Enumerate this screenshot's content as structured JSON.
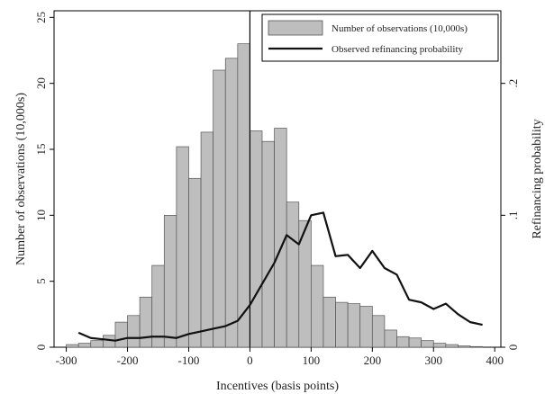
{
  "chart_data": {
    "type": "bar",
    "xlabel": "Incentives (basis points)",
    "ylabel_left": "Number of observations (10,000s)",
    "ylabel_right": "Refinancing probability",
    "xlim": [
      -320,
      410
    ],
    "ylim_left": [
      0,
      25.5
    ],
    "ylim_right": [
      0,
      0.255
    ],
    "xticks": [
      -300,
      -200,
      -100,
      0,
      100,
      200,
      300,
      400
    ],
    "yticks_left": [
      0,
      5,
      10,
      15,
      20,
      25
    ],
    "yticks_right": [
      0,
      0.1,
      0.2
    ],
    "ytick_labels_right": [
      "0",
      ".1",
      ".2"
    ],
    "vline_x": 0,
    "grid": false,
    "legend_position": "top-right",
    "bar_width": 20,
    "series": [
      {
        "name": "Number of observations (10,000s)",
        "kind": "bar",
        "axis": "left",
        "color": "#bebebe",
        "x": [
          -290,
          -270,
          -250,
          -230,
          -210,
          -190,
          -170,
          -150,
          -130,
          -110,
          -90,
          -70,
          -50,
          -30,
          -10,
          10,
          30,
          50,
          70,
          90,
          110,
          130,
          150,
          170,
          190,
          210,
          230,
          250,
          270,
          290,
          310,
          330,
          350,
          370
        ],
        "values": [
          0.2,
          0.3,
          0.5,
          0.9,
          1.9,
          2.4,
          3.8,
          6.2,
          10.0,
          15.2,
          12.8,
          16.3,
          21.0,
          21.9,
          23.0,
          16.4,
          15.6,
          16.6,
          11.0,
          9.6,
          6.2,
          3.8,
          3.4,
          3.3,
          3.1,
          2.4,
          1.3,
          0.8,
          0.7,
          0.5,
          0.3,
          0.2,
          0.1,
          0.05
        ]
      },
      {
        "name": "Observed refinancing probability",
        "kind": "line",
        "axis": "right",
        "color": "#111111",
        "x": [
          -280,
          -260,
          -240,
          -220,
          -200,
          -180,
          -160,
          -140,
          -120,
          -100,
          -80,
          -60,
          -40,
          -20,
          0,
          20,
          40,
          60,
          80,
          100,
          120,
          140,
          160,
          180,
          200,
          220,
          240,
          260,
          280,
          300,
          320,
          340,
          360,
          380
        ],
        "values": [
          0.011,
          0.007,
          0.006,
          0.005,
          0.007,
          0.007,
          0.008,
          0.008,
          0.007,
          0.01,
          0.012,
          0.014,
          0.016,
          0.02,
          0.032,
          0.048,
          0.064,
          0.085,
          0.078,
          0.1,
          0.102,
          0.069,
          0.07,
          0.06,
          0.073,
          0.06,
          0.055,
          0.036,
          0.034,
          0.029,
          0.033,
          0.025,
          0.019,
          0.017
        ]
      }
    ]
  }
}
